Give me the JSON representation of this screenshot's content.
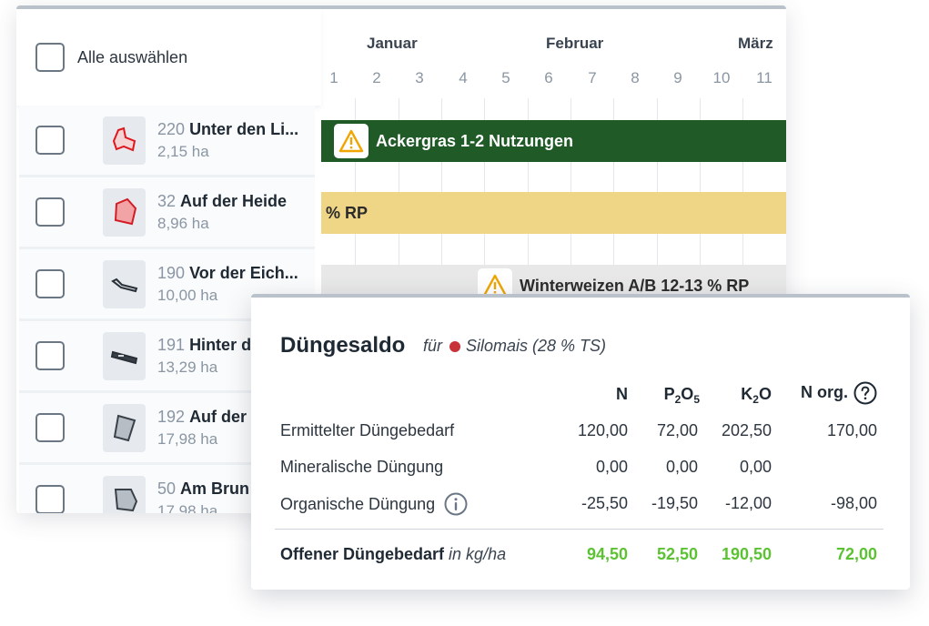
{
  "list": {
    "select_all": "Alle auswählen",
    "fields": [
      {
        "number": "220",
        "name": "Unter den Li...",
        "area": "2,15 ha",
        "shape": "red-outline-a"
      },
      {
        "number": "32",
        "name": "Auf der Heide",
        "area": "8,96 ha",
        "shape": "red-filled"
      },
      {
        "number": "190",
        "name": "Vor der Eich...",
        "area": "10,00 ha",
        "shape": "strip"
      },
      {
        "number": "191",
        "name": "Hinter d",
        "area": "13,29 ha",
        "shape": "strip-bar"
      },
      {
        "number": "192",
        "name": "Auf der",
        "area": "17,98 ha",
        "shape": "grey-quad"
      },
      {
        "number": "50",
        "name": "Am Brun",
        "area": "17,98 ha",
        "shape": "grey-poly"
      }
    ]
  },
  "timeline": {
    "months": [
      "Januar",
      "Februar",
      "März"
    ],
    "days": [
      "1",
      "2",
      "3",
      "4",
      "5",
      "6",
      "7",
      "8",
      "9",
      "10",
      "11"
    ],
    "bars": [
      {
        "label": "Ackergras 1-2 Nutzungen",
        "color": "#1f5a27",
        "warning": true
      },
      {
        "label": "% RP",
        "color": "#efd586",
        "warning": false
      },
      {
        "label": "Winterweizen A/B 12-13 % RP",
        "color": "#e8e8e8",
        "warning": true
      }
    ]
  },
  "saldo": {
    "title": "Düngesaldo",
    "for_label": "für",
    "crop": "Silomais (28 % TS)",
    "crop_color": "#c8333a",
    "columns": {
      "n": "N",
      "p_main": "P",
      "p_sub1": "2",
      "p_o": "O",
      "p_sub2": "5",
      "k_main": "K",
      "k_sub": "2",
      "k_o": "O",
      "norg": "N org."
    },
    "rows": [
      {
        "label": "Ermittelter Düngebedarf",
        "n": "120,00",
        "p": "72,00",
        "k": "202,50",
        "norg": "170,00"
      },
      {
        "label": "Mineralische Düngung",
        "n": "0,00",
        "p": "0,00",
        "k": "0,00",
        "norg": ""
      },
      {
        "label": "Organische Düngung",
        "n": "-25,50",
        "p": "-19,50",
        "k": "-12,00",
        "norg": "-98,00"
      }
    ],
    "total": {
      "label": "Offener Düngebedarf",
      "unit": "in kg/ha",
      "n": "94,50",
      "p": "52,50",
      "k": "190,50",
      "norg": "72,00",
      "color": "#5cc233"
    }
  }
}
